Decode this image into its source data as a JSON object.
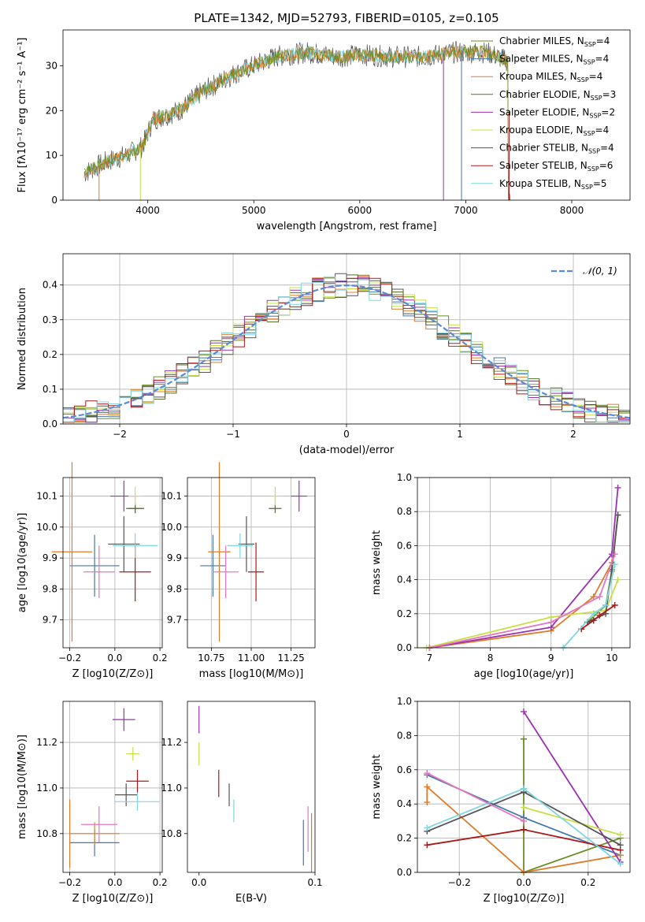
{
  "figure_title": "PLATE=1342, MJD=52793, FIBERID=0105, z=0.105",
  "models": [
    {
      "label": "Chabrier MILES, N",
      "sub": "SSP",
      "n": "=4",
      "color": "#6b8e23"
    },
    {
      "label": "Salpeter MILES, N",
      "sub": "SSP",
      "n": "=4",
      "color": "#4477aa"
    },
    {
      "label": "Kroupa MILES, N",
      "sub": "SSP",
      "n": "=4",
      "color": "#e07b2a"
    },
    {
      "label": "Chabrier ELODIE, N",
      "sub": "SSP",
      "n": "=3",
      "color": "#556b2f"
    },
    {
      "label": "Salpeter ELODIE, N",
      "sub": "SSP",
      "n": "=2",
      "color": "#9b30b0"
    },
    {
      "label": "Kroupa ELODIE, N",
      "sub": "SSP",
      "n": "=4",
      "color": "#c8e046"
    },
    {
      "label": "Chabrier STELIB, N",
      "sub": "SSP",
      "n": "=4",
      "color": "#555555"
    },
    {
      "label": "Salpeter STELIB, N",
      "sub": "SSP",
      "n": "=6",
      "color": "#aa1a1a"
    },
    {
      "label": "Kroupa STELIB, N",
      "sub": "SSP",
      "n": "=5",
      "color": "#7fd6e0"
    }
  ],
  "chart_data": [
    {
      "type": "line",
      "xlabel": "wavelength [Angstrom, rest frame]",
      "ylabel": "Flux [fλ10⁻¹⁷ erg cm⁻² s⁻¹ A⁻¹]",
      "xlim": [
        3200,
        8550
      ],
      "ylim": [
        0,
        38
      ],
      "xticks": [
        4000,
        5000,
        6000,
        7000,
        8000
      ],
      "yticks": [
        0,
        10,
        20,
        30
      ],
      "grid": false,
      "legend": "right",
      "spectrum_envelope": {
        "x": [
          3400,
          3600,
          3800,
          3950,
          4050,
          4300,
          4500,
          4800,
          5000,
          5200,
          5500,
          5800,
          6000,
          6300,
          6600,
          6900,
          7200,
          7400
        ],
        "y": [
          6,
          8.5,
          10,
          12,
          18,
          20,
          24,
          28,
          30,
          32,
          33,
          32,
          32.5,
          32,
          32,
          33,
          33,
          31
        ]
      }
    },
    {
      "type": "line",
      "xlabel": "(data-model)/error",
      "ylabel": "Normed distribution",
      "xlim": [
        -2.5,
        2.5
      ],
      "ylim": [
        0,
        0.49
      ],
      "xticks": [
        -2,
        -1,
        0,
        1,
        2
      ],
      "yticks": [
        0.0,
        0.1,
        0.2,
        0.3,
        0.4
      ],
      "grid": true,
      "legend": "top-right",
      "legend_label": "𝒩(0, 1)",
      "normal_curve": {
        "mean": 0,
        "sigma": 1
      }
    },
    {
      "type": "scatter",
      "xlabel": "Z [log10(Z/Z⊙)]",
      "ylabel": "age  [log10(age/yr)]",
      "xlim": [
        -0.23,
        0.21
      ],
      "ylim": [
        9.61,
        10.16
      ],
      "xticks": [
        -0.2,
        0.0,
        0.2
      ],
      "yticks": [
        9.7,
        9.8,
        9.9,
        10.0,
        10.1
      ],
      "grid": true,
      "points": [
        {
          "model": 0,
          "x": 0.09,
          "y": 10.06,
          "xerr": 0.03,
          "yerr": 0.015
        },
        {
          "model": 1,
          "x": -0.09,
          "y": 9.875,
          "xerr": 0.11,
          "yerr": 0.1
        },
        {
          "model": 2,
          "x": -0.19,
          "y": 9.92,
          "xerr": 0.09,
          "yerr": 0.29
        },
        {
          "model": 3,
          "x": 0.09,
          "y": 10.06,
          "xerr": 0.04,
          "yerr": 0.015
        },
        {
          "model": 4,
          "x": 0.04,
          "y": 10.1,
          "xerr": 0.06,
          "yerr": 0.05
        },
        {
          "model": 5,
          "x": 0.09,
          "y": 10.1,
          "xerr": 0.03,
          "yerr": 0.03
        },
        {
          "model": 6,
          "x": 0.04,
          "y": 9.945,
          "xerr": 0.07,
          "yerr": 0.09
        },
        {
          "model": 7,
          "x": 0.09,
          "y": 9.855,
          "xerr": 0.07,
          "yerr": 0.095
        },
        {
          "model": 8,
          "x": 0.09,
          "y": 9.94,
          "xerr": 0.1,
          "yerr": 0.04
        },
        {
          "model": 9,
          "x": -0.07,
          "y": 9.855,
          "xerr": 0.07,
          "yerr": 0.085
        }
      ]
    },
    {
      "type": "scatter",
      "xlabel": "mass [log10(M/M⊙)]",
      "ylabel": "",
      "xlim": [
        10.6,
        11.4
      ],
      "ylim": [
        9.61,
        10.16
      ],
      "xticks": [
        10.75,
        11.0,
        11.25
      ],
      "yticks": [
        9.7,
        9.8,
        9.9,
        10.0,
        10.1
      ],
      "grid": true,
      "points": [
        {
          "model": 1,
          "x": 10.76,
          "y": 9.875,
          "xerr": 0.08,
          "yerr": 0.1
        },
        {
          "model": 2,
          "x": 10.8,
          "y": 9.92,
          "xerr": 0.07,
          "yerr": 0.29
        },
        {
          "model": 3,
          "x": 11.15,
          "y": 10.06,
          "xerr": 0.04,
          "yerr": 0.015
        },
        {
          "model": 4,
          "x": 11.3,
          "y": 10.1,
          "xerr": 0.05,
          "yerr": 0.05
        },
        {
          "model": 5,
          "x": 11.15,
          "y": 10.1,
          "xerr": 0.02,
          "yerr": 0.03
        },
        {
          "model": 6,
          "x": 10.97,
          "y": 9.945,
          "xerr": 0.05,
          "yerr": 0.09
        },
        {
          "model": 7,
          "x": 11.03,
          "y": 9.855,
          "xerr": 0.05,
          "yerr": 0.095
        },
        {
          "model": 8,
          "x": 10.93,
          "y": 9.94,
          "xerr": 0.08,
          "yerr": 0.04
        },
        {
          "model": 9,
          "x": 10.84,
          "y": 9.855,
          "xerr": 0.08,
          "yerr": 0.085
        }
      ]
    },
    {
      "type": "line",
      "xlabel": "age  [log10(age/yr)]",
      "ylabel": "mass weight",
      "xlim": [
        6.8,
        10.3
      ],
      "ylim": [
        0,
        1.0
      ],
      "xticks": [
        7,
        8,
        9,
        10
      ],
      "yticks": [
        0.0,
        0.2,
        0.4,
        0.6,
        0.8,
        1.0
      ],
      "grid": true,
      "series": [
        {
          "model": 0,
          "x": [
            9.6,
            9.9,
            10.0,
            10.1
          ],
          "y": [
            0.15,
            0.25,
            0.45,
            0.78
          ]
        },
        {
          "model": 2,
          "x": [
            7.0,
            9.0,
            9.7,
            10.0
          ],
          "y": [
            0.0,
            0.1,
            0.3,
            0.5
          ]
        },
        {
          "model": 4,
          "x": [
            7.0,
            9.0,
            10.0,
            10.1
          ],
          "y": [
            0.0,
            0.12,
            0.55,
            0.94
          ]
        },
        {
          "model": 5,
          "x": [
            6.95,
            9.0,
            9.9,
            10.1
          ],
          "y": [
            0.0,
            0.18,
            0.22,
            0.4
          ]
        },
        {
          "model": 6,
          "x": [
            9.6,
            9.9,
            10.0,
            10.1
          ],
          "y": [
            0.15,
            0.2,
            0.46,
            0.78
          ]
        },
        {
          "model": 7,
          "x": [
            9.5,
            9.7,
            9.8,
            10.05
          ],
          "y": [
            0.11,
            0.16,
            0.19,
            0.25
          ]
        },
        {
          "model": 8,
          "x": [
            9.2,
            9.7,
            9.9,
            10.05
          ],
          "y": [
            0.0,
            0.2,
            0.25,
            0.49
          ]
        },
        {
          "model": 9,
          "x": [
            7.0,
            9.0,
            9.8,
            10.05
          ],
          "y": [
            0.0,
            0.15,
            0.3,
            0.55
          ]
        }
      ]
    },
    {
      "type": "scatter",
      "xlabel": "Z [log10(Z/Z⊙)]",
      "ylabel": "mass [log10(M/M⊙)]",
      "xlim": [
        -0.23,
        0.21
      ],
      "ylim": [
        10.63,
        11.38
      ],
      "xticks": [
        -0.2,
        0.0,
        0.2
      ],
      "yticks": [
        10.8,
        11.0,
        11.2
      ],
      "grid": true,
      "points": [
        {
          "model": 1,
          "x": -0.09,
          "y": 10.76,
          "xerr": 0.11,
          "yerr": 0.06
        },
        {
          "model": 2,
          "x": -0.2,
          "y": 10.8,
          "xerr": 0.0,
          "yerr": 0.15
        },
        {
          "model": 2,
          "x": -0.09,
          "y": 10.8,
          "xerr": 0.11,
          "yerr": 0.05
        },
        {
          "model": 4,
          "x": 0.04,
          "y": 11.3,
          "xerr": 0.05,
          "yerr": 0.05
        },
        {
          "model": 5,
          "x": 0.08,
          "y": 11.15,
          "xerr": 0.03,
          "yerr": 0.03
        },
        {
          "model": 6,
          "x": 0.05,
          "y": 10.97,
          "xerr": 0.05,
          "yerr": 0.05
        },
        {
          "model": 7,
          "x": 0.1,
          "y": 11.03,
          "xerr": 0.05,
          "yerr": 0.05
        },
        {
          "model": 8,
          "x": 0.1,
          "y": 10.94,
          "xerr": 0.1,
          "yerr": 0.04
        },
        {
          "model": 9,
          "x": -0.07,
          "y": 10.84,
          "xerr": 0.08,
          "yerr": 0.08
        }
      ]
    },
    {
      "type": "scatter",
      "xlabel": "E(B-V)",
      "ylabel": "",
      "xlim": [
        -0.01,
        0.1
      ],
      "ylim": [
        10.63,
        11.38
      ],
      "xticks": [
        0.0,
        0.1
      ],
      "yticks": [
        10.8,
        11.0,
        11.2
      ],
      "grid": false,
      "points": [
        {
          "model": 1,
          "x": 0.09,
          "y": 10.76,
          "yerr": 0.1
        },
        {
          "model": 2,
          "x": 0.097,
          "y": 10.76,
          "yerr": 0.13
        },
        {
          "model": 4,
          "x": 0.0,
          "y": 11.3,
          "yerr": 0.06
        },
        {
          "model": 5,
          "x": 0.0,
          "y": 11.15,
          "yerr": 0.05
        },
        {
          "model": 6,
          "x": 0.026,
          "y": 10.97,
          "yerr": 0.05
        },
        {
          "model": 7,
          "x": 0.017,
          "y": 11.02,
          "yerr": 0.06
        },
        {
          "model": 8,
          "x": 0.03,
          "y": 10.9,
          "yerr": 0.05
        },
        {
          "model": 9,
          "x": 0.094,
          "y": 10.82,
          "yerr": 0.1
        }
      ]
    },
    {
      "type": "line",
      "xlabel": "Z [log10(Z/Z⊙)]",
      "ylabel": "mass weight",
      "xlim": [
        -0.33,
        0.33
      ],
      "ylim": [
        0,
        1.0
      ],
      "xticks": [
        -0.2,
        0.0,
        0.2
      ],
      "yticks": [
        0.0,
        0.2,
        0.4,
        0.6,
        0.8,
        1.0
      ],
      "grid": true,
      "series": [
        {
          "model": 0,
          "x": [
            0.0,
            0.0,
            0.3
          ],
          "y": [
            0.78,
            0.0,
            0.2
          ]
        },
        {
          "model": 1,
          "x": [
            -0.3,
            0.0,
            0.3
          ],
          "y": [
            0.57,
            0.32,
            0.1
          ]
        },
        {
          "model": 2,
          "x": [
            -0.3,
            -0.3,
            0.0,
            0.3
          ],
          "y": [
            0.41,
            0.5,
            0.0,
            0.1
          ]
        },
        {
          "model": 4,
          "x": [
            0.0,
            0.3
          ],
          "y": [
            0.94,
            0.06
          ]
        },
        {
          "model": 5,
          "x": [
            0.0,
            0.3
          ],
          "y": [
            0.38,
            0.22
          ]
        },
        {
          "model": 6,
          "x": [
            -0.3,
            0.0,
            0.3
          ],
          "y": [
            0.24,
            0.47,
            0.16
          ]
        },
        {
          "model": 7,
          "x": [
            -0.3,
            0.0,
            0.3
          ],
          "y": [
            0.16,
            0.25,
            0.13
          ]
        },
        {
          "model": 8,
          "x": [
            -0.3,
            0.0,
            0.3
          ],
          "y": [
            0.26,
            0.49,
            0.05
          ]
        },
        {
          "model": 9,
          "x": [
            -0.3,
            0.0
          ],
          "y": [
            0.58,
            0.3
          ]
        }
      ]
    }
  ]
}
